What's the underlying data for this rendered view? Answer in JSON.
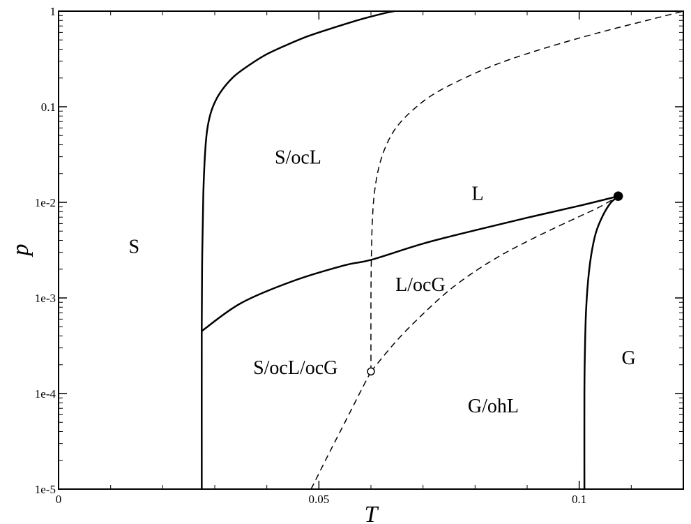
{
  "chart_data": {
    "type": "line",
    "title": "",
    "xlabel": "T",
    "ylabel": "p",
    "xlim": [
      0,
      0.12
    ],
    "ylim": [
      1e-05,
      1
    ],
    "yscale": "log",
    "grid": false,
    "x_ticks": [
      {
        "value": 0,
        "label": "0"
      },
      {
        "value": 0.05,
        "label": "0.05"
      },
      {
        "value": 0.1,
        "label": "0.1"
      }
    ],
    "y_ticks": [
      {
        "value": 1,
        "label": "1"
      },
      {
        "value": 0.1,
        "label": "0.1"
      },
      {
        "value": 0.01,
        "label": "1e-2"
      },
      {
        "value": 0.001,
        "label": "1e-3"
      },
      {
        "value": 0.0001,
        "label": "1e-4"
      },
      {
        "value": 1e-05,
        "label": "1e-5"
      }
    ],
    "series": [
      {
        "style": "solid",
        "x": [
          0.0275,
          0.0275,
          0.0276,
          0.0278,
          0.0281,
          0.0285,
          0.0292,
          0.0303,
          0.0318,
          0.0338,
          0.0365,
          0.0398,
          0.0437,
          0.048,
          0.0535,
          0.058,
          0.0625,
          0.0645
        ],
        "y": [
          1e-05,
          0.0005,
          0.003,
          0.012,
          0.03,
          0.055,
          0.085,
          0.12,
          0.16,
          0.21,
          0.27,
          0.35,
          0.44,
          0.55,
          0.69,
          0.82,
          0.95,
          1.0
        ]
      },
      {
        "style": "solid",
        "x": [
          0.0275,
          0.035,
          0.045,
          0.055,
          0.06,
          0.07,
          0.08,
          0.09,
          0.1,
          0.1075
        ],
        "y": [
          0.00045,
          0.00088,
          0.0015,
          0.0022,
          0.0025,
          0.0037,
          0.0051,
          0.0069,
          0.0092,
          0.0116
        ]
      },
      {
        "style": "solid",
        "x": [
          0.101,
          0.101,
          0.1011,
          0.1013,
          0.1017,
          0.1023,
          0.1032,
          0.1045,
          0.106,
          0.1075
        ],
        "y": [
          1e-05,
          0.0001,
          0.00028,
          0.0007,
          0.0015,
          0.0028,
          0.0048,
          0.0072,
          0.0098,
          0.0116
        ]
      },
      {
        "style": "dashed",
        "x": [
          0.06,
          0.06,
          0.0601,
          0.0603,
          0.0607,
          0.0615,
          0.0628,
          0.0648,
          0.0678,
          0.072,
          0.078,
          0.085,
          0.094,
          0.104,
          0.113,
          0.12
        ],
        "y": [
          0.00017,
          0.001,
          0.003,
          0.007,
          0.013,
          0.023,
          0.038,
          0.06,
          0.09,
          0.135,
          0.2,
          0.29,
          0.42,
          0.6,
          0.8,
          1.0
        ]
      },
      {
        "style": "dashed",
        "x": [
          0.0485,
          0.052,
          0.055,
          0.058,
          0.06
        ],
        "y": [
          1e-05,
          2.4e-05,
          5e-05,
          0.000105,
          0.00017
        ]
      },
      {
        "style": "dashed",
        "x": [
          0.06,
          0.065,
          0.07,
          0.075,
          0.08,
          0.085,
          0.09,
          0.095,
          0.1,
          0.104,
          0.1075
        ],
        "y": [
          0.00017,
          0.00036,
          0.00068,
          0.0012,
          0.0019,
          0.0028,
          0.0039,
          0.0053,
          0.0071,
          0.009,
          0.0116
        ]
      }
    ],
    "points": [
      {
        "name": "critical-point",
        "x": 0.1075,
        "y": 0.0116,
        "fill": "filled"
      },
      {
        "name": "triple-point",
        "x": 0.06,
        "y": 0.00017,
        "fill": "open"
      }
    ],
    "annotations": [
      {
        "text": "S",
        "x": 0.0145,
        "y": 0.0035
      },
      {
        "text": "S/ocL",
        "x": 0.046,
        "y": 0.03
      },
      {
        "text": "L",
        "x": 0.0805,
        "y": 0.0125
      },
      {
        "text": "L/ocG",
        "x": 0.0695,
        "y": 0.0014
      },
      {
        "text": "S/ocL/ocG",
        "x": 0.0455,
        "y": 0.00019
      },
      {
        "text": "G/ohL",
        "x": 0.0835,
        "y": 7.5e-05
      },
      {
        "text": "G",
        "x": 0.1095,
        "y": 0.00024
      }
    ]
  }
}
